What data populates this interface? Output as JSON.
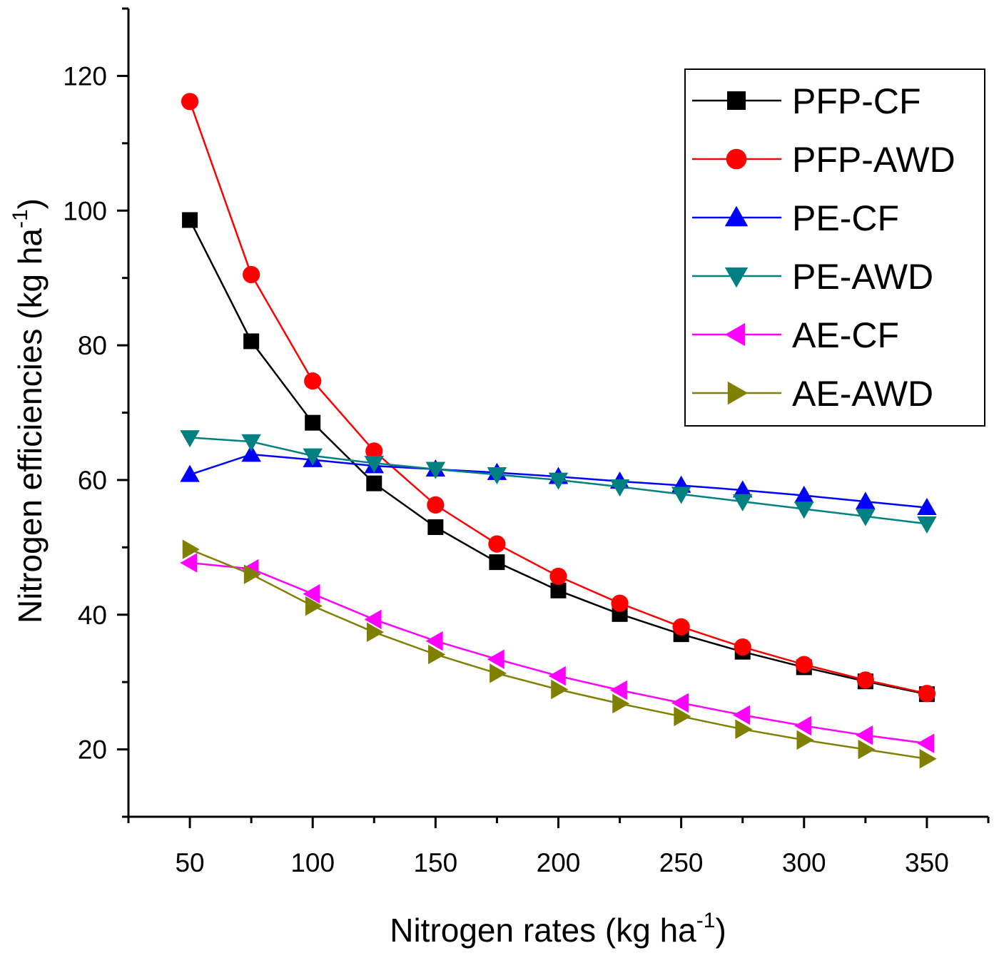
{
  "chart_data": {
    "type": "line",
    "xlabel": "Nitrogen rates (kg ha",
    "xlabel_sup": "-1",
    "xlabel_end": ")",
    "ylabel": "Nitrogen efficiencies (kg ha",
    "ylabel_sup": "-1",
    "ylabel_end": ")",
    "xlim": [
      25,
      375
    ],
    "ylim": [
      10,
      130
    ],
    "xticks": [
      "50",
      "100",
      "150",
      "200",
      "250",
      "300",
      "350"
    ],
    "yticks": [
      "20",
      "40",
      "60",
      "80",
      "100",
      "120"
    ],
    "grid": false,
    "legend_position": "top-right",
    "x": [
      50,
      75,
      100,
      125,
      150,
      175,
      200,
      225,
      250,
      275,
      300,
      325,
      350
    ],
    "series": [
      {
        "name": "PFP-CF",
        "color": "#000000",
        "marker": "square",
        "values": [
          98.6,
          80.6,
          68.5,
          59.5,
          53.0,
          47.8,
          43.6,
          40.1,
          37.1,
          34.5,
          32.2,
          30.1,
          28.2
        ]
      },
      {
        "name": "PFP-AWD",
        "color": "#ff0000",
        "marker": "circle",
        "values": [
          116.2,
          90.5,
          74.7,
          64.3,
          56.3,
          50.5,
          45.7,
          41.7,
          38.2,
          35.2,
          32.6,
          30.3,
          28.3
        ]
      },
      {
        "name": "PE-CF",
        "color": "#0000ff",
        "marker": "triangle-up",
        "values": [
          60.8,
          63.8,
          63.0,
          62.1,
          61.6,
          61.1,
          60.5,
          59.8,
          59.2,
          58.5,
          57.7,
          56.8,
          55.9
        ]
      },
      {
        "name": "PE-AWD",
        "color": "#008080",
        "marker": "triangle-down",
        "values": [
          66.3,
          65.7,
          63.6,
          62.5,
          61.6,
          60.8,
          60.0,
          59.0,
          57.9,
          56.8,
          55.7,
          54.6,
          53.5
        ]
      },
      {
        "name": "AE-CF",
        "color": "#ff00ff",
        "marker": "triangle-left",
        "values": [
          47.7,
          46.8,
          43.1,
          39.3,
          36.1,
          33.4,
          30.9,
          28.8,
          26.9,
          25.1,
          23.5,
          22.1,
          20.9
        ]
      },
      {
        "name": "AE-AWD",
        "color": "#808000",
        "marker": "triangle-right",
        "values": [
          49.7,
          46.0,
          41.3,
          37.4,
          34.1,
          31.3,
          28.9,
          26.8,
          24.9,
          23.0,
          21.4,
          20.0,
          18.6
        ]
      }
    ]
  }
}
